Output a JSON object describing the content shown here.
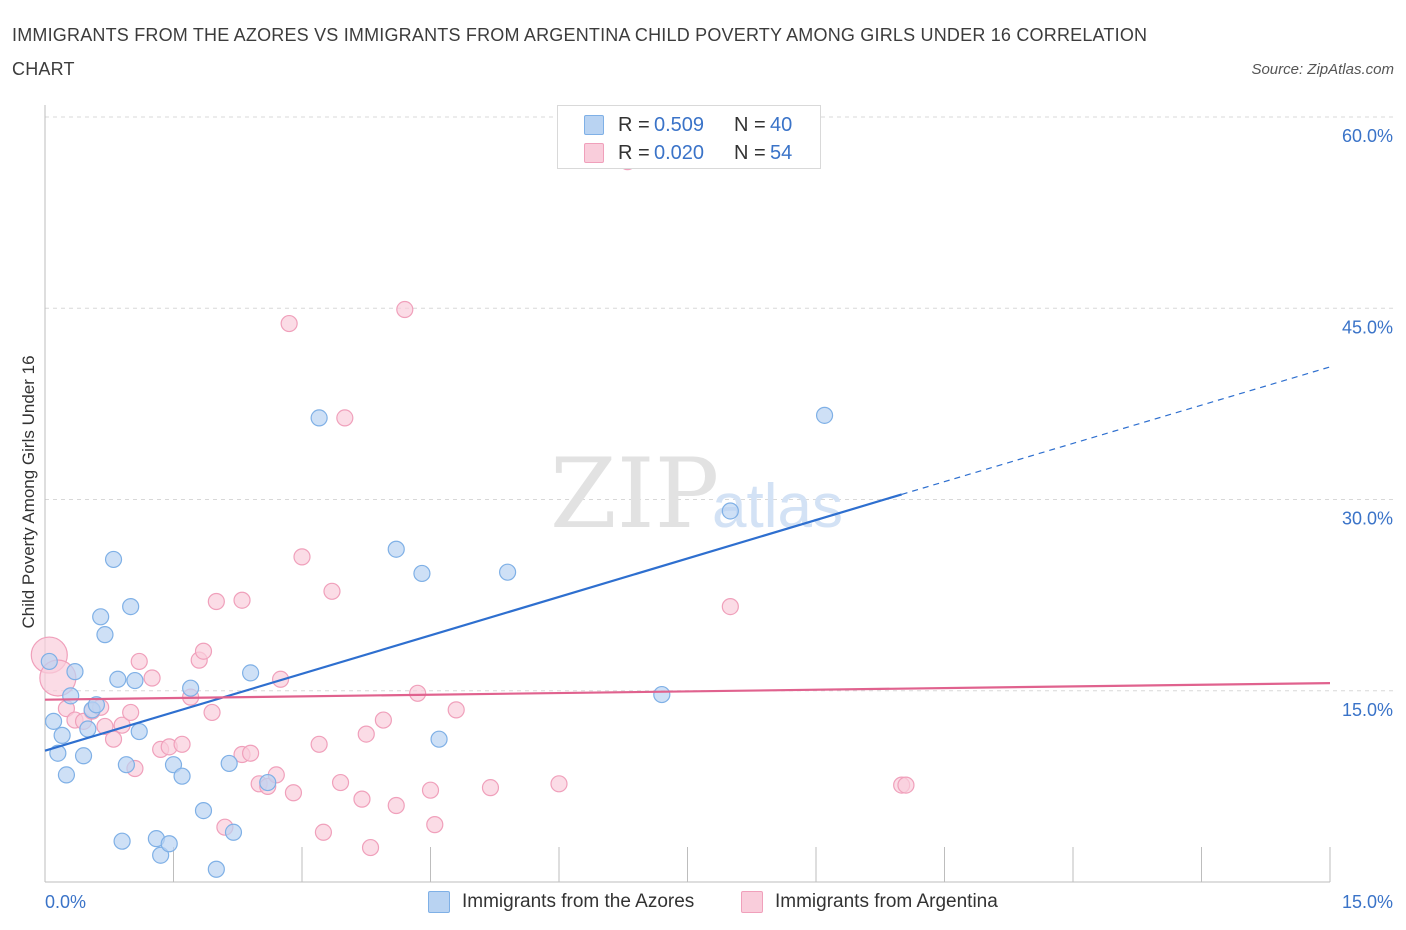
{
  "chart_data": {
    "type": "scatter",
    "title": "IMMIGRANTS FROM THE AZORES VS IMMIGRANTS FROM ARGENTINA CHILD POVERTY AMONG GIRLS UNDER 16 CORRELATION CHART",
    "source": "Source: ZipAtlas.com",
    "ylabel": "Child Poverty Among Girls Under 16",
    "xlabel": "",
    "xlim": [
      0,
      15
    ],
    "ylim": [
      0,
      60
    ],
    "x_tick_labels": [
      "0.0%",
      "15.0%"
    ],
    "y_ticks": [
      15,
      30,
      45,
      60
    ],
    "y_tick_labels": [
      "15.0%",
      "30.0%",
      "45.0%",
      "60.0%"
    ],
    "grid": "horizontal dashed",
    "watermark": {
      "zip": "ZIP",
      "atlas": "atlas"
    },
    "legend_position": "bottom-center",
    "stats": [
      {
        "r_label": "R =",
        "r_value": "0.509",
        "n_label": "N =",
        "n_value": "40"
      },
      {
        "r_label": "R =",
        "r_value": "0.020",
        "n_label": "N =",
        "n_value": "54"
      }
    ],
    "series": [
      {
        "name": "Immigrants from the Azores",
        "color": "#7fb0e6",
        "fill": "#b9d3f2",
        "trend_color": "#2e6fcf",
        "trend": {
          "x0": 0,
          "y0": 10.3,
          "x1": 10.0,
          "y1": 30.4,
          "x_dash_end": 15.0,
          "y_dash_end": 40.4
        },
        "points": [
          [
            0.05,
            17.3
          ],
          [
            0.1,
            12.6
          ],
          [
            0.15,
            10.1
          ],
          [
            0.2,
            11.5
          ],
          [
            0.25,
            8.4
          ],
          [
            0.3,
            14.6
          ],
          [
            0.35,
            16.5
          ],
          [
            0.45,
            9.9
          ],
          [
            0.5,
            12.0
          ],
          [
            0.55,
            13.5
          ],
          [
            0.6,
            13.9
          ],
          [
            0.65,
            20.8
          ],
          [
            0.7,
            19.4
          ],
          [
            0.8,
            25.3
          ],
          [
            0.85,
            15.9
          ],
          [
            0.9,
            3.2
          ],
          [
            0.95,
            9.2
          ],
          [
            1.0,
            21.6
          ],
          [
            1.05,
            15.8
          ],
          [
            1.1,
            11.8
          ],
          [
            1.3,
            3.4
          ],
          [
            1.35,
            2.1
          ],
          [
            1.45,
            3.0
          ],
          [
            1.5,
            9.2
          ],
          [
            1.6,
            8.3
          ],
          [
            1.7,
            15.2
          ],
          [
            1.85,
            5.6
          ],
          [
            2.0,
            1.0
          ],
          [
            2.15,
            9.3
          ],
          [
            2.2,
            3.9
          ],
          [
            2.4,
            16.4
          ],
          [
            2.6,
            7.8
          ],
          [
            3.2,
            36.4
          ],
          [
            4.1,
            26.1
          ],
          [
            4.4,
            24.2
          ],
          [
            4.6,
            11.2
          ],
          [
            5.4,
            24.3
          ],
          [
            7.2,
            14.7
          ],
          [
            8.0,
            29.1
          ],
          [
            9.1,
            36.6
          ]
        ]
      },
      {
        "name": "Immigrants from Argentina",
        "color": "#f0a0bb",
        "fill": "#f9cddb",
        "trend_color": "#e0628e",
        "trend": {
          "x0": 0,
          "y0": 14.3,
          "x1": 15.0,
          "y1": 15.6
        },
        "points": [
          [
            0.05,
            17.8
          ],
          [
            0.15,
            16.0
          ],
          [
            0.25,
            13.6
          ],
          [
            0.35,
            12.7
          ],
          [
            0.45,
            12.6
          ],
          [
            0.55,
            13.4
          ],
          [
            0.65,
            13.7
          ],
          [
            0.7,
            12.2
          ],
          [
            0.8,
            11.2
          ],
          [
            0.9,
            12.3
          ],
          [
            1.0,
            13.3
          ],
          [
            1.05,
            8.9
          ],
          [
            1.1,
            17.3
          ],
          [
            1.25,
            16.0
          ],
          [
            1.35,
            10.4
          ],
          [
            1.45,
            10.6
          ],
          [
            1.6,
            10.8
          ],
          [
            1.7,
            14.5
          ],
          [
            1.8,
            17.4
          ],
          [
            1.85,
            18.1
          ],
          [
            1.95,
            13.3
          ],
          [
            2.0,
            22.0
          ],
          [
            2.1,
            4.3
          ],
          [
            2.3,
            10.0
          ],
          [
            2.3,
            22.1
          ],
          [
            2.4,
            10.1
          ],
          [
            2.5,
            7.7
          ],
          [
            2.6,
            7.5
          ],
          [
            2.7,
            8.4
          ],
          [
            2.75,
            15.9
          ],
          [
            2.85,
            43.8
          ],
          [
            2.9,
            7.0
          ],
          [
            3.0,
            25.5
          ],
          [
            3.2,
            10.8
          ],
          [
            3.25,
            3.9
          ],
          [
            3.35,
            22.8
          ],
          [
            3.45,
            7.8
          ],
          [
            3.5,
            36.4
          ],
          [
            3.7,
            6.5
          ],
          [
            3.75,
            11.6
          ],
          [
            3.8,
            2.7
          ],
          [
            3.95,
            12.7
          ],
          [
            4.1,
            6.0
          ],
          [
            4.2,
            44.9
          ],
          [
            4.35,
            14.8
          ],
          [
            4.5,
            7.2
          ],
          [
            4.55,
            4.5
          ],
          [
            4.8,
            13.5
          ],
          [
            5.2,
            7.4
          ],
          [
            6.0,
            7.7
          ],
          [
            6.8,
            56.5
          ],
          [
            8.0,
            21.6
          ],
          [
            10.0,
            7.6
          ],
          [
            10.05,
            7.6
          ]
        ]
      }
    ]
  }
}
